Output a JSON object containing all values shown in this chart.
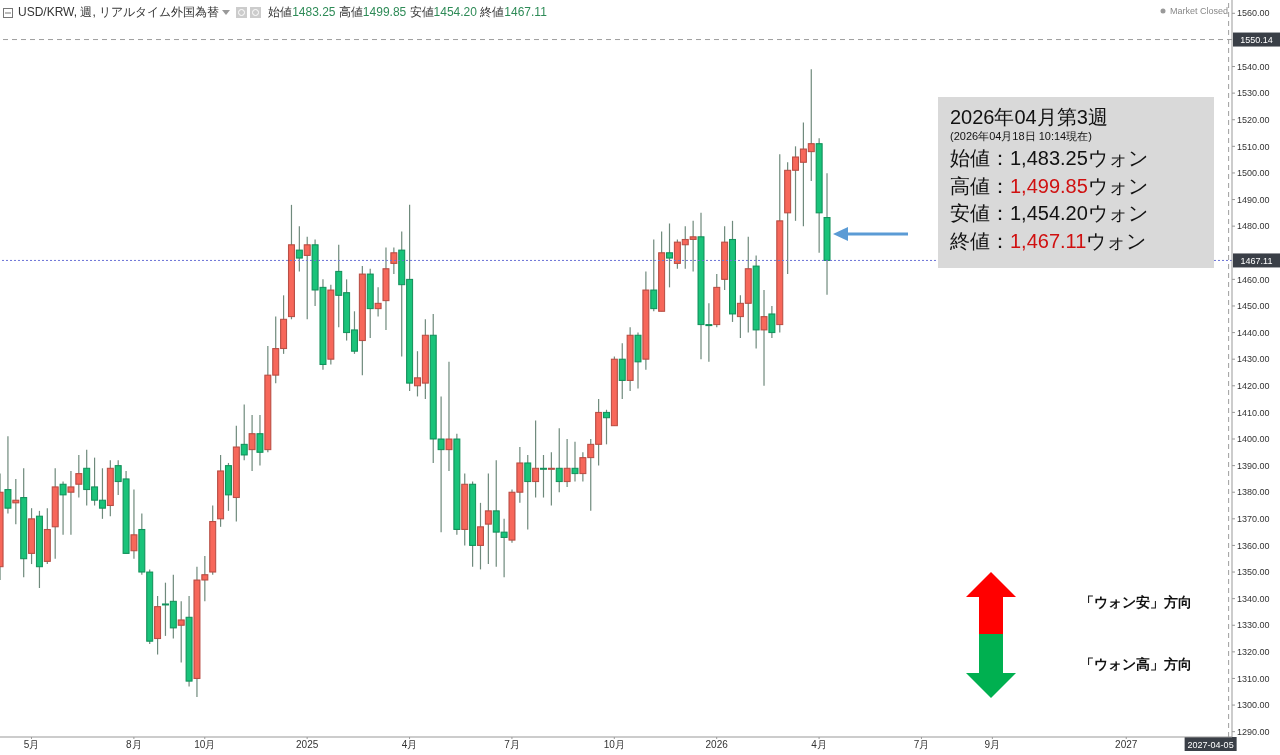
{
  "chart_data": {
    "type": "candlestick",
    "title": "USD/KRW, 週, リアルタイム外国為替",
    "subtitle": "始値1483.25 高値1499.85 安値1454.20 終値1467.11",
    "x": [
      "2024-04-08",
      "2024-04-15",
      "2024-04-22",
      "2024-04-29",
      "2024-05-06",
      "2024-05-13",
      "2024-05-20",
      "2024-05-27",
      "2024-06-03",
      "2024-06-10",
      "2024-06-17",
      "2024-06-24",
      "2024-07-01",
      "2024-07-08",
      "2024-07-15",
      "2024-07-22",
      "2024-07-29",
      "2024-08-05",
      "2024-08-12",
      "2024-08-19",
      "2024-08-26",
      "2024-09-02",
      "2024-09-09",
      "2024-09-16",
      "2024-09-23",
      "2024-09-30",
      "2024-10-07",
      "2024-10-14",
      "2024-10-21",
      "2024-10-28",
      "2024-11-04",
      "2024-11-11",
      "2024-11-18",
      "2024-11-25",
      "2024-12-02",
      "2024-12-09",
      "2024-12-16",
      "2024-12-23",
      "2024-12-30",
      "2025-01-06",
      "2025-01-13",
      "2025-01-20",
      "2025-01-27",
      "2025-02-03",
      "2025-02-10",
      "2025-02-17",
      "2025-02-24",
      "2025-03-03",
      "2025-03-10",
      "2025-03-17",
      "2025-03-24",
      "2025-03-31",
      "2025-04-07",
      "2025-04-14",
      "2025-04-21",
      "2025-04-28",
      "2025-05-05",
      "2025-05-12",
      "2025-05-19",
      "2025-05-26",
      "2025-06-02",
      "2025-06-09",
      "2025-06-16",
      "2025-06-23",
      "2025-06-30",
      "2025-07-07",
      "2025-07-14",
      "2025-07-21",
      "2025-07-28",
      "2025-08-04",
      "2025-08-11",
      "2025-08-18",
      "2025-08-25",
      "2025-09-01",
      "2025-09-08",
      "2025-09-15",
      "2025-09-22",
      "2025-09-29",
      "2025-10-06",
      "2025-10-13",
      "2025-10-20",
      "2025-10-27",
      "2025-11-03",
      "2025-11-10",
      "2025-11-17",
      "2025-11-24",
      "2025-12-01",
      "2025-12-08",
      "2025-12-15",
      "2025-12-22",
      "2025-12-29",
      "2026-01-05",
      "2026-01-12",
      "2026-01-19",
      "2026-01-26",
      "2026-02-02",
      "2026-02-09",
      "2026-02-16",
      "2026-02-23",
      "2026-03-02",
      "2026-03-09",
      "2026-03-16",
      "2026-03-23",
      "2026-03-30",
      "2026-04-06",
      "2026-04-13"
    ],
    "ohlc": [
      [
        1352,
        1387,
        1347,
        1380
      ],
      [
        1381,
        1401,
        1372,
        1374
      ],
      [
        1376,
        1385,
        1368,
        1377
      ],
      [
        1378,
        1389,
        1348,
        1355
      ],
      [
        1357,
        1374,
        1353,
        1370
      ],
      [
        1371,
        1373,
        1344,
        1352
      ],
      [
        1354,
        1374,
        1353,
        1366
      ],
      [
        1367,
        1389,
        1355,
        1382
      ],
      [
        1383,
        1384,
        1364,
        1379
      ],
      [
        1380,
        1388,
        1364,
        1382
      ],
      [
        1383,
        1394,
        1378,
        1387
      ],
      [
        1389,
        1396,
        1375,
        1381
      ],
      [
        1382,
        1393,
        1375,
        1377
      ],
      [
        1377,
        1389,
        1370,
        1374
      ],
      [
        1375,
        1392,
        1371,
        1389
      ],
      [
        1390,
        1392,
        1379,
        1384
      ],
      [
        1385,
        1388,
        1357,
        1357
      ],
      [
        1358,
        1381,
        1355,
        1364
      ],
      [
        1366,
        1372,
        1349,
        1350
      ],
      [
        1350,
        1351,
        1323,
        1324
      ],
      [
        1325,
        1341,
        1319,
        1337
      ],
      [
        1338,
        1346,
        1326,
        1338
      ],
      [
        1339,
        1349,
        1325,
        1329
      ],
      [
        1330,
        1339,
        1316,
        1332
      ],
      [
        1333,
        1341,
        1307,
        1309
      ],
      [
        1310,
        1352,
        1303,
        1347
      ],
      [
        1347,
        1356,
        1339,
        1349
      ],
      [
        1350,
        1375,
        1349,
        1369
      ],
      [
        1370,
        1394,
        1367,
        1388
      ],
      [
        1390,
        1391,
        1373,
        1379
      ],
      [
        1378,
        1405,
        1369,
        1397
      ],
      [
        1398,
        1413,
        1392,
        1394
      ],
      [
        1396,
        1409,
        1388,
        1402
      ],
      [
        1402,
        1409,
        1390,
        1395
      ],
      [
        1396,
        1435,
        1395,
        1424
      ],
      [
        1424,
        1446,
        1421,
        1434
      ],
      [
        1434,
        1454,
        1432,
        1445
      ],
      [
        1446,
        1488,
        1445,
        1473
      ],
      [
        1471,
        1480,
        1463,
        1468
      ],
      [
        1469,
        1476,
        1445,
        1473
      ],
      [
        1473,
        1475,
        1450,
        1456
      ],
      [
        1457,
        1460,
        1426,
        1428
      ],
      [
        1430,
        1458,
        1428,
        1456
      ],
      [
        1463,
        1473,
        1442,
        1454
      ],
      [
        1455,
        1460,
        1437,
        1440
      ],
      [
        1441,
        1448,
        1432,
        1433
      ],
      [
        1437,
        1465,
        1424,
        1462
      ],
      [
        1462,
        1464,
        1438,
        1449
      ],
      [
        1449,
        1457,
        1446,
        1451
      ],
      [
        1452,
        1472,
        1441,
        1464
      ],
      [
        1466,
        1472,
        1462,
        1470
      ],
      [
        1471,
        1478,
        1431,
        1458
      ],
      [
        1460,
        1488,
        1418,
        1421
      ],
      [
        1420,
        1433,
        1416,
        1423
      ],
      [
        1421,
        1445,
        1415,
        1439
      ],
      [
        1439,
        1447,
        1391,
        1400
      ],
      [
        1400,
        1416,
        1365,
        1396
      ],
      [
        1396,
        1429,
        1388,
        1400
      ],
      [
        1400,
        1402,
        1364,
        1366
      ],
      [
        1366,
        1387,
        1360,
        1383
      ],
      [
        1383,
        1384,
        1352,
        1360
      ],
      [
        1360,
        1376,
        1351,
        1367
      ],
      [
        1368,
        1387,
        1353,
        1373
      ],
      [
        1373,
        1392,
        1352,
        1365
      ],
      [
        1365,
        1370,
        1348,
        1363
      ],
      [
        1362,
        1381,
        1361,
        1380
      ],
      [
        1380,
        1397,
        1376,
        1391
      ],
      [
        1391,
        1394,
        1366,
        1384
      ],
      [
        1384,
        1407,
        1378,
        1389
      ],
      [
        1389,
        1394,
        1378,
        1389
      ],
      [
        1389,
        1395,
        1375,
        1389
      ],
      [
        1389,
        1404,
        1380,
        1384
      ],
      [
        1384,
        1400,
        1382,
        1389
      ],
      [
        1389,
        1399,
        1384,
        1387
      ],
      [
        1387,
        1395,
        1384,
        1393
      ],
      [
        1393,
        1400,
        1373,
        1398
      ],
      [
        1398,
        1415,
        1390,
        1410
      ],
      [
        1410,
        1411,
        1398,
        1408
      ],
      [
        1405,
        1431,
        1405,
        1430
      ],
      [
        1430,
        1436,
        1415,
        1422
      ],
      [
        1422,
        1442,
        1418,
        1439
      ],
      [
        1439,
        1440,
        1419,
        1429
      ],
      [
        1430,
        1463,
        1426,
        1456
      ],
      [
        1456,
        1475,
        1448,
        1449
      ],
      [
        1448,
        1478,
        1448,
        1470
      ],
      [
        1470,
        1481,
        1457,
        1468
      ],
      [
        1466,
        1475,
        1464,
        1474
      ],
      [
        1473,
        1480,
        1464,
        1475
      ],
      [
        1475,
        1482,
        1463,
        1476
      ],
      [
        1476,
        1485,
        1430,
        1443
      ],
      [
        1443,
        1451,
        1429,
        1443
      ],
      [
        1443,
        1462,
        1442,
        1457
      ],
      [
        1460,
        1480,
        1456,
        1474
      ],
      [
        1475,
        1482,
        1444,
        1447
      ],
      [
        1446,
        1454,
        1438,
        1451
      ],
      [
        1451,
        1476,
        1440,
        1464
      ],
      [
        1465,
        1469,
        1434,
        1441
      ],
      [
        1441,
        1456,
        1420,
        1446
      ],
      [
        1447,
        1450,
        1438,
        1440
      ],
      [
        1443,
        1507,
        1440,
        1482
      ],
      [
        1485,
        1504,
        1462,
        1501
      ],
      [
        1501,
        1510,
        1482,
        1506
      ],
      [
        1504,
        1519,
        1480,
        1509
      ],
      [
        1508,
        1539,
        1497,
        1511
      ],
      [
        1511,
        1513,
        1470,
        1485
      ],
      [
        1483.25,
        1499.85,
        1454.2,
        1467.11
      ]
    ],
    "colors": [
      "#f7675a",
      "#19c37a",
      "#f7675a",
      "#19c37a",
      "#f7675a",
      "#19c37a",
      "#f7675a",
      "#f7675a",
      "#19c37a",
      "#f7675a",
      "#f7675a",
      "#19c37a",
      "#19c37a",
      "#19c37a",
      "#f7675a",
      "#19c37a",
      "#19c37a",
      "#f7675a",
      "#19c37a",
      "#19c37a",
      "#f7675a",
      "#19c37a",
      "#19c37a",
      "#f7675a",
      "#19c37a",
      "#f7675a",
      "#f7675a",
      "#f7675a",
      "#f7675a",
      "#19c37a",
      "#f7675a",
      "#19c37a",
      "#f7675a",
      "#19c37a",
      "#f7675a",
      "#f7675a",
      "#f7675a",
      "#f7675a",
      "#19c37a",
      "#f7675a",
      "#19c37a",
      "#19c37a",
      "#f7675a",
      "#19c37a",
      "#19c37a",
      "#19c37a",
      "#f7675a",
      "#19c37a",
      "#f7675a",
      "#f7675a",
      "#f7675a",
      "#19c37a",
      "#19c37a",
      "#f7675a",
      "#f7675a",
      "#19c37a",
      "#19c37a",
      "#f7675a",
      "#19c37a",
      "#f7675a",
      "#19c37a",
      "#f7675a",
      "#f7675a",
      "#19c37a",
      "#19c37a",
      "#f7675a",
      "#f7675a",
      "#19c37a",
      "#f7675a",
      "#19c37a",
      "#f7675a",
      "#19c37a",
      "#f7675a",
      "#19c37a",
      "#f7675a",
      "#f7675a",
      "#f7675a",
      "#19c37a",
      "#f7675a",
      "#19c37a",
      "#f7675a",
      "#19c37a",
      "#f7675a",
      "#19c37a",
      "#f7675a",
      "#19c37a",
      "#f7675a",
      "#f7675a",
      "#f7675a",
      "#19c37a",
      "#19c37a",
      "#f7675a",
      "#f7675a",
      "#19c37a",
      "#f7675a",
      "#f7675a",
      "#19c37a",
      "#f7675a",
      "#19c37a",
      "#f7675a",
      "#f7675a",
      "#f7675a",
      "#f7675a",
      "#f7675a",
      "#19c37a",
      "#19c37a"
    ],
    "xlim": [
      "2024-04-08",
      "2027-04-08"
    ],
    "xticks": [
      {
        "value": "2024-05-06",
        "label": "5月"
      },
      {
        "value": "2024-08-05",
        "label": "8月"
      },
      {
        "value": "2024-10-07",
        "label": "10月"
      },
      {
        "value": "2025-01-06",
        "label": "2025"
      },
      {
        "value": "2025-04-07",
        "label": "4月"
      },
      {
        "value": "2025-07-07",
        "label": "7月"
      },
      {
        "value": "2025-10-06",
        "label": "10月"
      },
      {
        "value": "2026-01-05",
        "label": "2026"
      },
      {
        "value": "2026-04-06",
        "label": "4月"
      },
      {
        "value": "2026-07-06",
        "label": "7月"
      },
      {
        "value": "2026-09-07",
        "label": "9月"
      },
      {
        "value": "2027-01-04",
        "label": "2027"
      }
    ],
    "ylim": [
      1288,
      1565
    ],
    "yticks": [
      {
        "value": 1290,
        "label": "1290.00"
      },
      {
        "value": 1300,
        "label": "1300.00"
      },
      {
        "value": 1310,
        "label": "1310.00"
      },
      {
        "value": 1320,
        "label": "1320.00"
      },
      {
        "value": 1330,
        "label": "1330.00"
      },
      {
        "value": 1340,
        "label": "1340.00"
      },
      {
        "value": 1350,
        "label": "1350.00"
      },
      {
        "value": 1360,
        "label": "1360.00"
      },
      {
        "value": 1370,
        "label": "1370.00"
      },
      {
        "value": 1380,
        "label": "1380.00"
      },
      {
        "value": 1390,
        "label": "1390.00"
      },
      {
        "value": 1400,
        "label": "1400.00"
      },
      {
        "value": 1410,
        "label": "1410.00"
      },
      {
        "value": 1420,
        "label": "1420.00"
      },
      {
        "value": 1430,
        "label": "1430.00"
      },
      {
        "value": 1440,
        "label": "1440.00"
      },
      {
        "value": 1450,
        "label": "1450.00"
      },
      {
        "value": 1460,
        "label": "1460.00"
      },
      {
        "value": 1480,
        "label": "1480.00"
      },
      {
        "value": 1490,
        "label": "1490.00"
      },
      {
        "value": 1500,
        "label": "1500.00"
      },
      {
        "value": 1510,
        "label": "1510.00"
      },
      {
        "value": 1520,
        "label": "1520.00"
      },
      {
        "value": 1530,
        "label": "1530.00"
      },
      {
        "value": 1540,
        "label": "1540.00"
      },
      {
        "value": 1560,
        "label": "1560.00"
      }
    ],
    "ref_lines": [
      {
        "axis": "y",
        "value": 1550.14,
        "label": "1550.14",
        "color": "#9e9e9e",
        "line_style": "dashed"
      },
      {
        "axis": "y",
        "value": 1467.11,
        "label": "1467.11",
        "color": "#6b72d6",
        "line_style": "dotted"
      },
      {
        "axis": "x",
        "value": "2027-04-05",
        "label": "2027-04-05",
        "color": "#9e9e9e",
        "line_style": "dashed"
      }
    ],
    "annotations": [
      "Market Closed",
      "2026年04月第3週",
      "(2026年04月18日 10:14現在)",
      "始値：1,483.25ウォン",
      "高値：1,499.85ウォン",
      "安値：1,454.20ウォン",
      "終値：1,467.11ウォン",
      "「ウォン安」方向",
      "「ウォン高」方向"
    ]
  }
}
